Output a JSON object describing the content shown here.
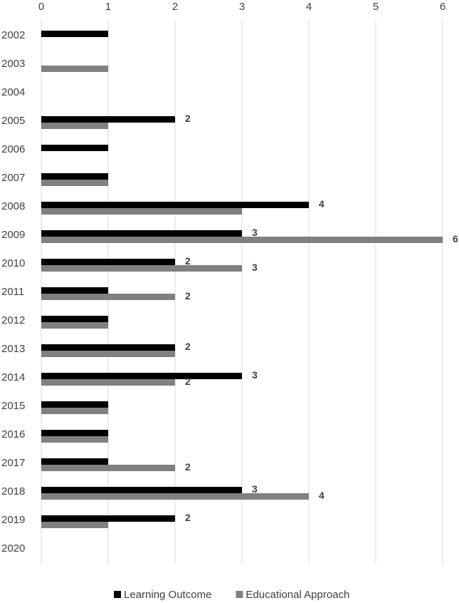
{
  "chart_data": {
    "type": "hbar",
    "categories": [
      "2002",
      "2003",
      "2004",
      "2005",
      "2006",
      "2007",
      "2008",
      "2009",
      "2010",
      "2011",
      "2012",
      "2013",
      "2014",
      "2015",
      "2016",
      "2017",
      "2018",
      "2019",
      "2020"
    ],
    "series": [
      {
        "name": "Learning Outcome",
        "color": "#000000",
        "values": [
          1,
          null,
          null,
          2,
          1,
          1,
          4,
          3,
          2,
          1,
          1,
          2,
          3,
          1,
          1,
          1,
          3,
          2,
          null
        ],
        "value_labels": [
          null,
          null,
          null,
          "2",
          null,
          null,
          "4",
          "3",
          "2",
          null,
          null,
          "2",
          "3",
          null,
          null,
          null,
          "3",
          "2",
          null
        ]
      },
      {
        "name": "Educational Approach",
        "color": "#808080",
        "values": [
          null,
          1,
          null,
          1,
          null,
          1,
          3,
          6,
          3,
          2,
          1,
          2,
          2,
          1,
          1,
          2,
          4,
          1,
          null
        ],
        "value_labels": [
          null,
          null,
          null,
          null,
          null,
          null,
          null,
          "6",
          "3",
          "2",
          null,
          null,
          "2",
          null,
          null,
          "2",
          "4",
          null,
          null
        ]
      }
    ],
    "xlim": [
      0,
      6
    ],
    "xticks": [
      0,
      1,
      2,
      3,
      4,
      5,
      6
    ],
    "grid": true,
    "legend": "bottom"
  }
}
